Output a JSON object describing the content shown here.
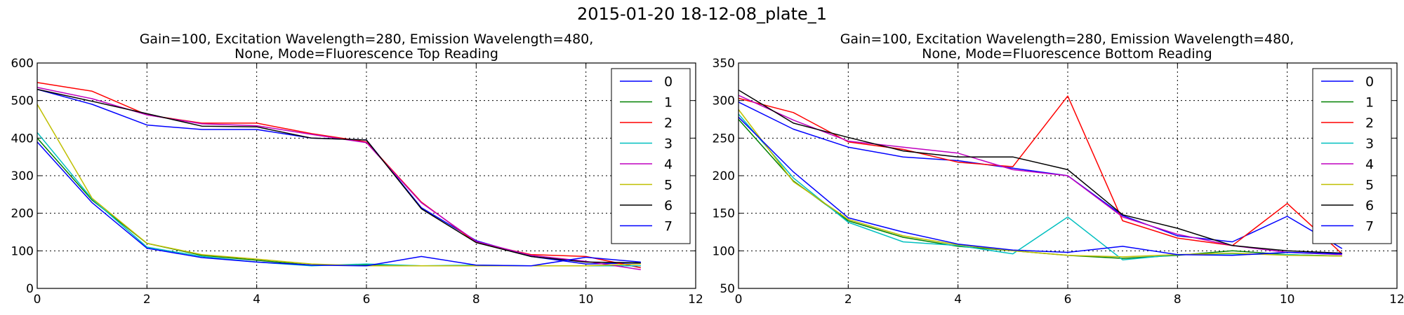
{
  "figure_title": "2015-01-20 18-12-08_plate_1",
  "colors": [
    "#0000ff",
    "#008000",
    "#ff0000",
    "#00bfbf",
    "#bf00bf",
    "#bfbf00",
    "#000000",
    "#0000ff"
  ],
  "chart_data": [
    {
      "type": "line",
      "title_line1": "Gain=100, Excitation Wavelength=280, Emission Wavelength=480,",
      "title_line2": "None, Mode=Fluorescence Top Reading",
      "xlim": [
        0,
        12
      ],
      "ylim": [
        0,
        600
      ],
      "xticks": [
        0,
        2,
        4,
        6,
        8,
        10,
        12
      ],
      "yticks": [
        0,
        100,
        200,
        300,
        400,
        500,
        600
      ],
      "grid": true,
      "legend_position": "top-right",
      "x": [
        0,
        1,
        2,
        3,
        4,
        5,
        6,
        7,
        8,
        9,
        10,
        11
      ],
      "series": [
        {
          "name": "0",
          "values": [
            530,
            490,
            435,
            423,
            423,
            400,
            395,
            215,
            127,
            85,
            65,
            68
          ]
        },
        {
          "name": "1",
          "values": [
            400,
            235,
            120,
            88,
            75,
            62,
            62,
            60,
            60,
            60,
            60,
            60
          ]
        },
        {
          "name": "2",
          "values": [
            548,
            525,
            462,
            440,
            440,
            412,
            390,
            230,
            122,
            90,
            85,
            55
          ]
        },
        {
          "name": "3",
          "values": [
            415,
            238,
            110,
            85,
            70,
            60,
            65,
            60,
            62,
            60,
            60,
            60
          ]
        },
        {
          "name": "4",
          "values": [
            535,
            505,
            462,
            438,
            433,
            410,
            388,
            228,
            125,
            88,
            72,
            50
          ]
        },
        {
          "name": "5",
          "values": [
            490,
            240,
            120,
            90,
            78,
            65,
            60,
            60,
            60,
            60,
            60,
            65
          ]
        },
        {
          "name": "6",
          "values": [
            530,
            498,
            465,
            432,
            430,
            400,
            395,
            212,
            122,
            85,
            70,
            68
          ]
        },
        {
          "name": "7",
          "values": [
            390,
            228,
            107,
            82,
            70,
            62,
            60,
            85,
            62,
            60,
            83,
            70
          ]
        }
      ]
    },
    {
      "type": "line",
      "title_line1": "Gain=100, Excitation Wavelength=280, Emission Wavelength=480,",
      "title_line2": "None, Mode=Fluorescence Bottom Reading",
      "xlim": [
        0,
        12
      ],
      "ylim": [
        50,
        350
      ],
      "xticks": [
        0,
        2,
        4,
        6,
        8,
        10,
        12
      ],
      "yticks": [
        50,
        100,
        150,
        200,
        250,
        300,
        350
      ],
      "grid": true,
      "legend_position": "top-right",
      "x": [
        0,
        1,
        2,
        3,
        4,
        5,
        6,
        7,
        8,
        9,
        10,
        11
      ],
      "series": [
        {
          "name": "0",
          "values": [
            298,
            262,
            238,
            225,
            220,
            210,
            200,
            147,
            120,
            112,
            146,
            103
          ]
        },
        {
          "name": "1",
          "values": [
            275,
            193,
            140,
            118,
            106,
            100,
            94,
            90,
            94,
            100,
            95,
            93
          ]
        },
        {
          "name": "2",
          "values": [
            303,
            284,
            245,
            235,
            218,
            212,
            306,
            140,
            117,
            107,
            163,
            96
          ]
        },
        {
          "name": "3",
          "values": [
            282,
            197,
            138,
            112,
            107,
            96,
            145,
            88,
            95,
            96,
            95,
            93
          ]
        },
        {
          "name": "4",
          "values": [
            307,
            274,
            246,
            238,
            230,
            208,
            200,
            145,
            122,
            107,
            98,
            95
          ]
        },
        {
          "name": "5",
          "values": [
            288,
            192,
            142,
            120,
            108,
            100,
            94,
            92,
            95,
            97,
            94,
            93
          ]
        },
        {
          "name": "6",
          "values": [
            314,
            270,
            251,
            233,
            225,
            225,
            208,
            148,
            130,
            107,
            100,
            97
          ]
        },
        {
          "name": "7",
          "values": [
            278,
            205,
            144,
            125,
            109,
            101,
            98,
            106,
            95,
            94,
            98,
            96
          ]
        }
      ]
    }
  ]
}
